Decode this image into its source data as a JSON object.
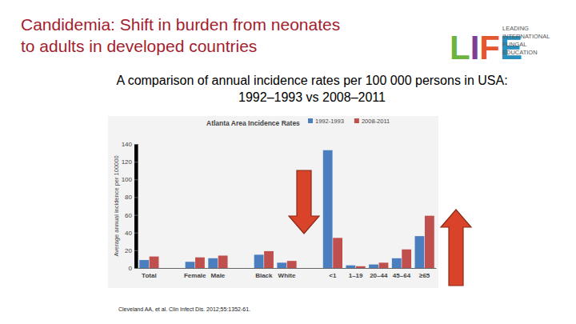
{
  "slide": {
    "title": [
      "Candidemia: Shift in burden from neonates",
      "to adults in developed countries"
    ],
    "logo": "LIFE",
    "logo_text": [
      "LEADING",
      "INTERNATIONAL",
      "FUNGAL",
      "EDUCATION"
    ],
    "subtitle": [
      "A comparison of annual incidence rates per 100 000 persons in USA:",
      "1992–1993 vs 2008–2011"
    ],
    "citation": "Cleveland AA, et al. Clin Infect Dis. 2012;55:1352-61."
  },
  "chart_data": {
    "type": "bar",
    "title": "Atlanta Area Incidence Rates",
    "y_label": "Average annual incidence per 100000",
    "categories": [
      "Total",
      null,
      "Female",
      "Male",
      null,
      "Black",
      "White",
      null,
      "<1",
      "1–19",
      "20–44",
      "45–64",
      "≥65"
    ],
    "series": [
      {
        "name": "1992-1993",
        "color": "#4a7ebf",
        "values": [
          9,
          null,
          7,
          11,
          null,
          15,
          6,
          null,
          133,
          3,
          4,
          11,
          36
        ]
      },
      {
        "name": "2008-2011",
        "color": "#c0504d",
        "values": [
          13,
          null,
          12,
          14,
          null,
          19,
          8,
          null,
          34,
          2,
          6,
          21,
          59
        ]
      }
    ],
    "ylim": [
      0,
      140
    ],
    "yticks": [
      0,
      20,
      40,
      60,
      80,
      100,
      120,
      140
    ],
    "grid": false,
    "legend": "top"
  }
}
